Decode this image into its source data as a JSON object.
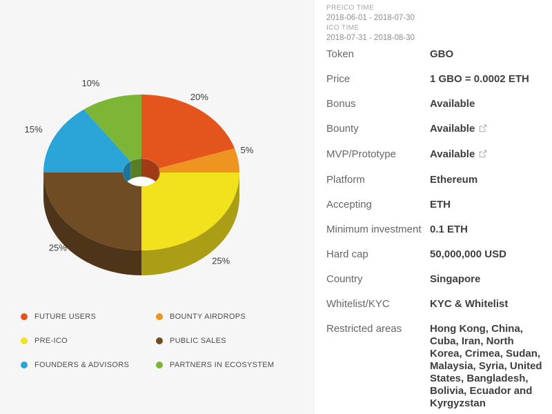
{
  "panel_colors": {
    "left_background": "#f6f6f6",
    "right_background": "#ffffff",
    "label_gray": "#666666",
    "value_dark": "#3e3e3e",
    "time_label_gray": "#a7a7a7",
    "time_value_gray": "#8e8e8e",
    "link_icon_gray": "#b6b6b6"
  },
  "ico_times": {
    "preico_label": "PREICO TIME",
    "preico_value": "2018-06-01 - 2018-07-30",
    "ico_label": "ICO TIME",
    "ico_value": "2018-07-31 - 2018-08-30"
  },
  "icons": {
    "external_link": "external-link-icon"
  },
  "details": {
    "rows": [
      {
        "label": "Token",
        "value": "GBO",
        "external_link": false
      },
      {
        "label": "Price",
        "value": "1 GBO = 0.0002 ETH",
        "external_link": false
      },
      {
        "label": "Bonus",
        "value": "Available",
        "external_link": false
      },
      {
        "label": "Bounty",
        "value": "Available",
        "external_link": true
      },
      {
        "label": "MVP/Prototype",
        "value": "Available",
        "external_link": true
      },
      {
        "label": "Platform",
        "value": "Ethereum",
        "external_link": false
      },
      {
        "label": "Accepting",
        "value": "ETH",
        "external_link": false
      },
      {
        "label": "Minimum investment",
        "value": "0.1 ETH",
        "external_link": false
      },
      {
        "label": "Hard cap",
        "value": "50,000,000 USD",
        "external_link": false
      },
      {
        "label": "Country",
        "value": "Singapore",
        "external_link": false
      },
      {
        "label": "Whitelist/KYC",
        "value": "KYC & Whitelist",
        "external_link": false
      },
      {
        "label": "Restricted areas",
        "value": "Hong Kong, China, Cuba, Iran, North Korea, Crimea, Sudan, Malaysia, Syria, United States, Bangladesh, Bolivia, Ecuador and Kyrgyzstan",
        "external_link": false
      }
    ]
  },
  "chart_data": {
    "type": "pie",
    "style": "3d-donut",
    "title": "",
    "unit": "%",
    "start_angle": "top",
    "direction": "clockwise",
    "legend_position": "bottom",
    "legend_columns": 2,
    "grid": false,
    "slices": [
      {
        "label": "FUTURE USERS",
        "value": 20,
        "color": "#e4551e"
      },
      {
        "label": "BOUNTY AIRDROPS",
        "value": 5,
        "color": "#ee9421"
      },
      {
        "label": "PRE-ICO",
        "value": 25,
        "color": "#f2e21e"
      },
      {
        "label": "PUBLIC SALES",
        "value": 25,
        "color": "#6f4c23"
      },
      {
        "label": "FOUNDERS & ADVISORS",
        "value": 15,
        "color": "#2ba4d8"
      },
      {
        "label": "PARTNERS IN ECOSYSTEM",
        "value": 10,
        "color": "#7db636"
      }
    ],
    "data_labels": [
      "20%",
      "5%",
      "25%",
      "25%",
      "15%",
      "10%"
    ]
  }
}
